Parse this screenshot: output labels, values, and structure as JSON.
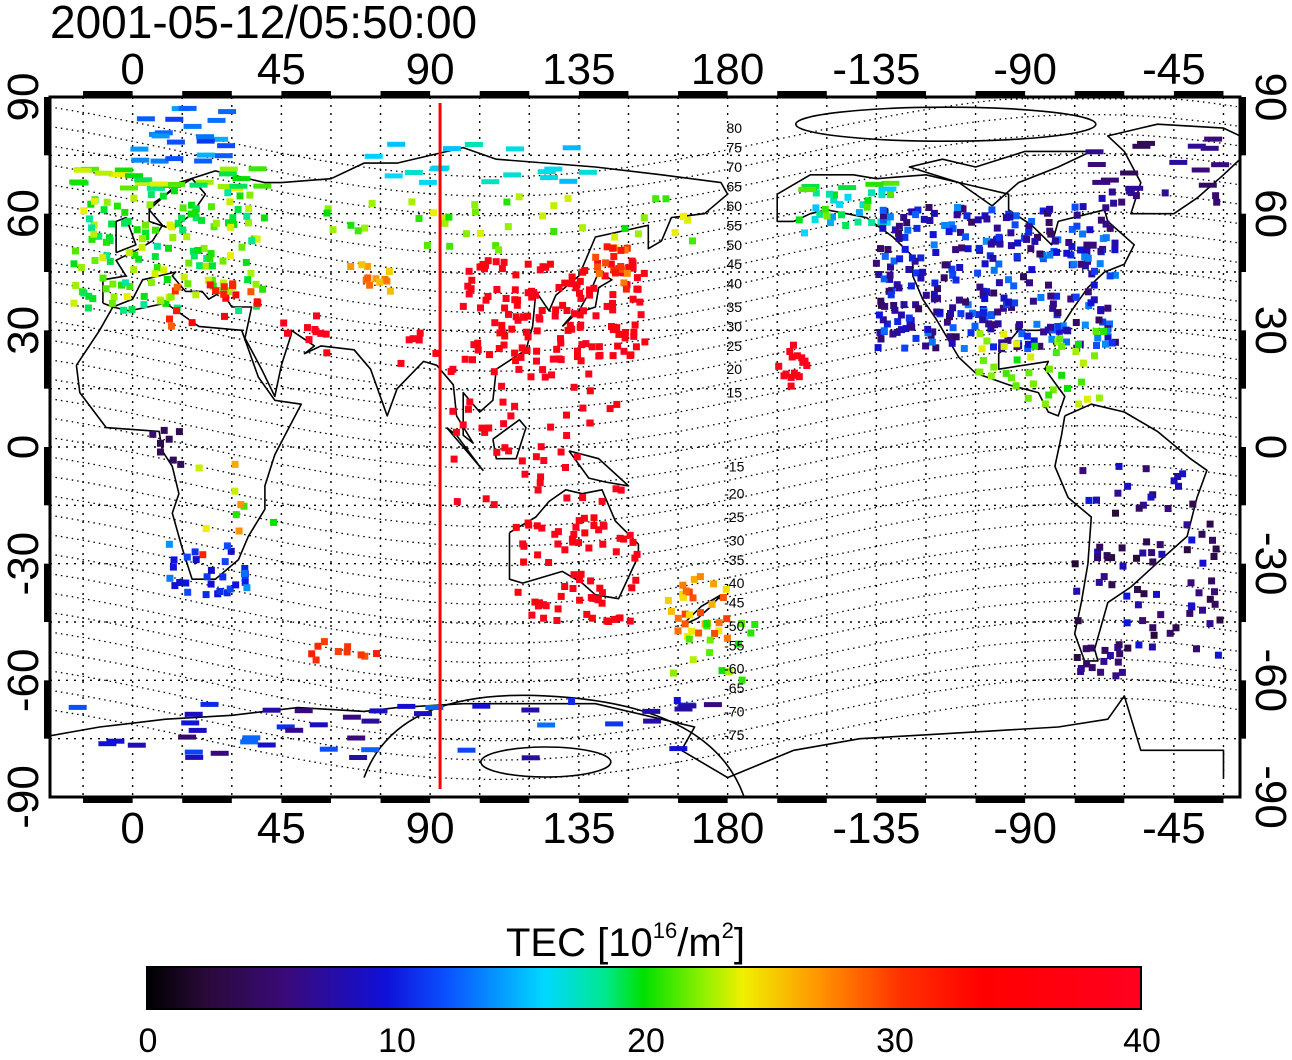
{
  "title": "2001-05-12/05:50:00",
  "map": {
    "projection": "equirectangular",
    "lon_range": [
      -25,
      335
    ],
    "lat_range": [
      -90,
      90
    ],
    "top_lon_ticks": [
      {
        "lon": 0,
        "label": "0"
      },
      {
        "lon": 45,
        "label": "45"
      },
      {
        "lon": 90,
        "label": "90"
      },
      {
        "lon": 135,
        "label": "135"
      },
      {
        "lon": 180,
        "label": "180"
      },
      {
        "lon": 225,
        "label": "-135"
      },
      {
        "lon": 270,
        "label": "-90"
      },
      {
        "lon": 315,
        "label": "-45"
      }
    ],
    "bottom_lon_ticks": [
      {
        "lon": 0,
        "label": "0"
      },
      {
        "lon": 45,
        "label": "45"
      },
      {
        "lon": 90,
        "label": "90"
      },
      {
        "lon": 135,
        "label": "135"
      },
      {
        "lon": 180,
        "label": "180"
      },
      {
        "lon": 225,
        "label": "-135"
      },
      {
        "lon": 270,
        "label": "-90"
      },
      {
        "lon": 315,
        "label": "-45"
      }
    ],
    "lat_ticks": [
      {
        "lat": 90,
        "label": "90"
      },
      {
        "lat": 60,
        "label": "60"
      },
      {
        "lat": 30,
        "label": "30"
      },
      {
        "lat": 0,
        "label": "0"
      },
      {
        "lat": -30,
        "label": "-30"
      },
      {
        "lat": -60,
        "label": "-60"
      },
      {
        "lat": -90,
        "label": "-90"
      }
    ],
    "subsolar_meridian_lon": 93,
    "contour_labels": [
      {
        "lat": 82,
        "text": "80"
      },
      {
        "lat": 77,
        "text": "75"
      },
      {
        "lat": 72,
        "text": "70"
      },
      {
        "lat": 67,
        "text": "65"
      },
      {
        "lat": 62,
        "text": "60"
      },
      {
        "lat": 57,
        "text": "55"
      },
      {
        "lat": 52,
        "text": "50"
      },
      {
        "lat": 47,
        "text": "45"
      },
      {
        "lat": 42,
        "text": "40"
      },
      {
        "lat": 36,
        "text": "35"
      },
      {
        "lat": 31,
        "text": "30"
      },
      {
        "lat": 26,
        "text": "25"
      },
      {
        "lat": 20,
        "text": "20"
      },
      {
        "lat": 14,
        "text": "15"
      },
      {
        "lat": -5,
        "text": "-15"
      },
      {
        "lat": -12,
        "text": "-20"
      },
      {
        "lat": -18,
        "text": "-25"
      },
      {
        "lat": -24,
        "text": "-30"
      },
      {
        "lat": -29,
        "text": "-35"
      },
      {
        "lat": -35,
        "text": "-40"
      },
      {
        "lat": -40,
        "text": "-45"
      },
      {
        "lat": -46,
        "text": "-50"
      },
      {
        "lat": -51,
        "text": "-55"
      },
      {
        "lat": -57,
        "text": "-60"
      },
      {
        "lat": -62,
        "text": "-65"
      },
      {
        "lat": -68,
        "text": "-70"
      },
      {
        "lat": -74,
        "text": "-75"
      }
    ],
    "tec_clusters": [
      {
        "region": "Europe",
        "lon": [
          -18,
          40
        ],
        "lat": [
          35,
          72
        ],
        "n": 170,
        "tec": [
          18,
          24
        ]
      },
      {
        "region": "Scandinavia-North",
        "lon": [
          -5,
          30
        ],
        "lat": [
          72,
          88
        ],
        "n": 22,
        "tec": [
          11,
          15
        ]
      },
      {
        "region": "Mediterranean",
        "lon": [
          10,
          38
        ],
        "lat": [
          28,
          42
        ],
        "n": 18,
        "tec": [
          27,
          37
        ]
      },
      {
        "region": "Middle East",
        "lon": [
          45,
          60
        ],
        "lat": [
          24,
          34
        ],
        "n": 10,
        "tec": [
          38,
          40
        ]
      },
      {
        "region": "Central Asia",
        "lon": [
          65,
          80
        ],
        "lat": [
          40,
          47
        ],
        "n": 12,
        "tec": [
          25,
          29
        ]
      },
      {
        "region": "Siberia",
        "lon": [
          50,
          170
        ],
        "lat": [
          50,
          65
        ],
        "n": 40,
        "tec": [
          20,
          24
        ]
      },
      {
        "region": "Arctic",
        "lon": [
          70,
          150
        ],
        "lat": [
          68,
          78
        ],
        "n": 18,
        "tec": [
          15,
          18
        ]
      },
      {
        "region": "East Asia",
        "lon": [
          100,
          155
        ],
        "lat": [
          22,
          48
        ],
        "n": 150,
        "tec": [
          36,
          40
        ]
      },
      {
        "region": "Japan North",
        "lon": [
          140,
          150
        ],
        "lat": [
          40,
          52
        ],
        "n": 18,
        "tec": [
          27,
          33
        ]
      },
      {
        "region": "Southeast Asia",
        "lon": [
          95,
          150
        ],
        "lat": [
          -15,
          20
        ],
        "n": 55,
        "tec": [
          38,
          40
        ]
      },
      {
        "region": "India",
        "lon": [
          80,
          95
        ],
        "lat": [
          20,
          30
        ],
        "n": 6,
        "tec": [
          38,
          40
        ]
      },
      {
        "region": "Pacific",
        "lon": [
          195,
          205
        ],
        "lat": [
          15,
          27
        ],
        "n": 16,
        "tec": [
          38,
          40
        ]
      },
      {
        "region": "Australia",
        "lon": [
          115,
          155
        ],
        "lat": [
          -45,
          -18
        ],
        "n": 70,
        "tec": [
          36,
          40
        ]
      },
      {
        "region": "New Zealand",
        "lon": [
          162,
          180
        ],
        "lat": [
          -50,
          -33
        ],
        "n": 30,
        "tec": [
          24,
          30
        ]
      },
      {
        "region": "Southern Ocean",
        "lon": [
          160,
          190
        ],
        "lat": [
          -60,
          -45
        ],
        "n": 14,
        "tec": [
          20,
          23
        ]
      },
      {
        "region": "East Africa",
        "lon": [
          20,
          45
        ],
        "lat": [
          -32,
          0
        ],
        "n": 10,
        "tec": [
          20,
          32
        ]
      },
      {
        "region": "South Africa",
        "lon": [
          10,
          35
        ],
        "lat": [
          -38,
          -25
        ],
        "n": 30,
        "tec": [
          9,
          14
        ]
      },
      {
        "region": "Central Africa",
        "lon": [
          5,
          15
        ],
        "lat": [
          -5,
          5
        ],
        "n": 8,
        "tec": [
          3,
          5
        ]
      },
      {
        "region": "South Atlantic",
        "lon": [
          50,
          75
        ],
        "lat": [
          -55,
          -50
        ],
        "n": 10,
        "tec": [
          28,
          32
        ]
      },
      {
        "region": "Antarctica",
        "lon": [
          -20,
          180
        ],
        "lat": [
          -80,
          -65
        ],
        "n": 45,
        "tec": [
          5,
          13
        ]
      },
      {
        "region": "Alaska",
        "lon": [
          200,
          230
        ],
        "lat": [
          55,
          68
        ],
        "n": 35,
        "tec": [
          14,
          22
        ]
      },
      {
        "region": "North America",
        "lon": [
          225,
          298
        ],
        "lat": [
          25,
          62
        ],
        "n": 320,
        "tec": [
          4,
          14
        ]
      },
      {
        "region": "Greenland",
        "lon": [
          290,
          335
        ],
        "lat": [
          60,
          80
        ],
        "n": 25,
        "tec": [
          4,
          8
        ]
      },
      {
        "region": "Caribbean",
        "lon": [
          255,
          295
        ],
        "lat": [
          10,
          30
        ],
        "n": 40,
        "tec": [
          20,
          24
        ]
      },
      {
        "region": "South America",
        "lon": [
          285,
          330
        ],
        "lat": [
          -55,
          -5
        ],
        "n": 80,
        "tec": [
          2,
          10
        ]
      },
      {
        "region": "Patagonia",
        "lon": [
          283,
          300
        ],
        "lat": [
          -60,
          -50
        ],
        "n": 14,
        "tec": [
          4,
          7
        ]
      }
    ]
  },
  "colorbar": {
    "title": "TEC  [10",
    "title_exp": "16",
    "title_unit": "/m",
    "title_unit_exp": "2",
    "title_close": "]",
    "min": 0,
    "max": 40,
    "ticks": [
      "0",
      "10",
      "20",
      "30",
      "40"
    ]
  }
}
